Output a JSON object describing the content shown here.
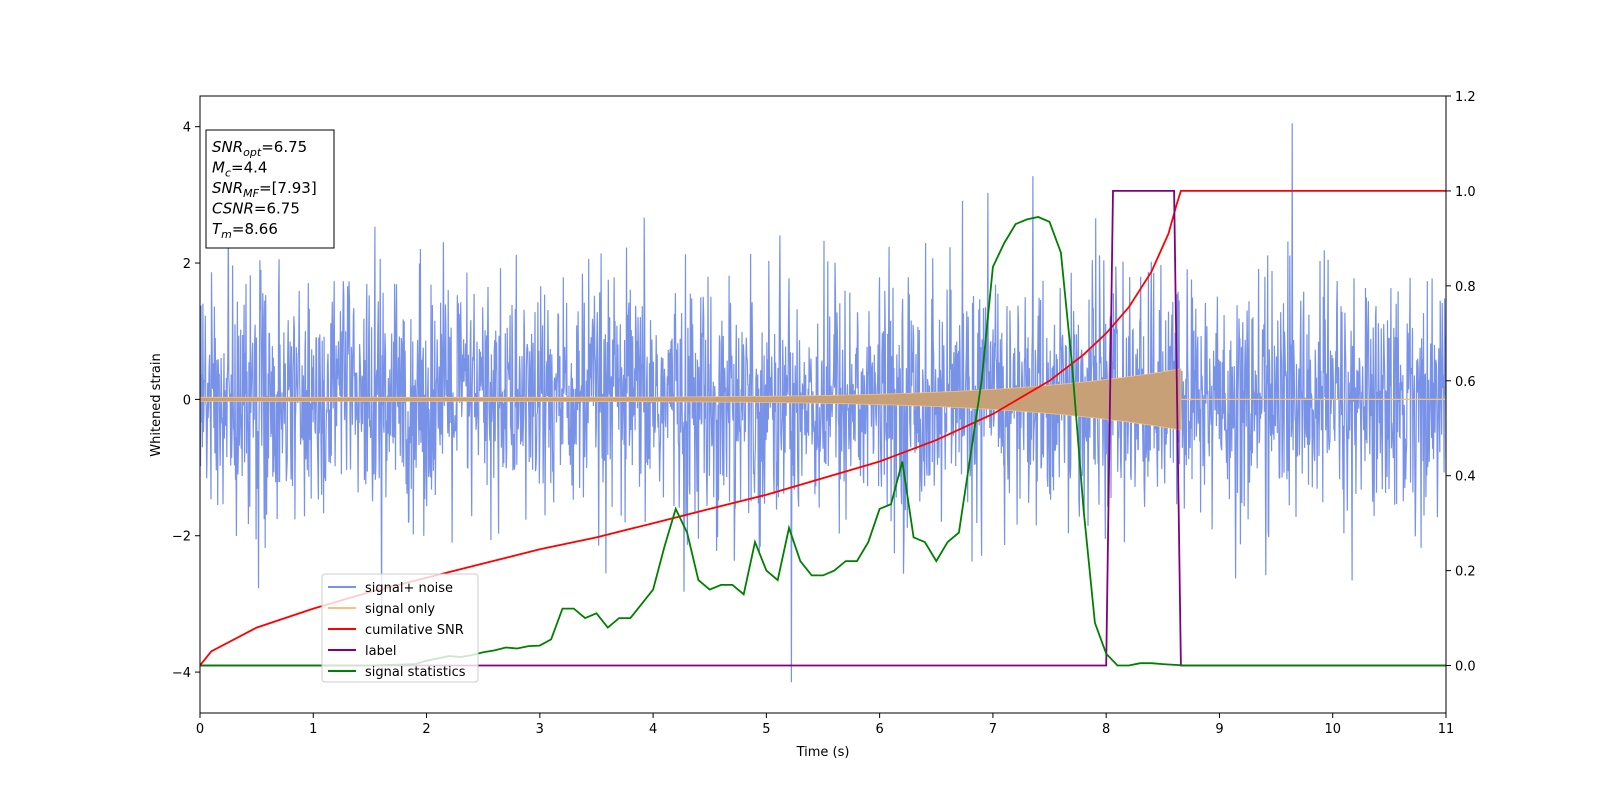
{
  "chart_data": {
    "type": "line",
    "title": "",
    "xlabel": "Time (s)",
    "ylabel": "Whitened strain",
    "ylabel_right": "",
    "xlim": [
      0,
      11
    ],
    "ylim": [
      -4.6,
      4.45
    ],
    "ylim_right": [
      -0.1,
      1.2
    ],
    "x_ticks": [
      "0",
      "1",
      "2",
      "3",
      "4",
      "5",
      "6",
      "7",
      "8",
      "9",
      "10",
      "11"
    ],
    "y_ticks": [
      "−4",
      "−2",
      "0",
      "2",
      "4"
    ],
    "y_ticks_right": [
      "0.0",
      "0.2",
      "0.4",
      "0.6",
      "0.8",
      "1.0",
      "1.2"
    ],
    "grid": false,
    "legend_position": "lower-left",
    "annotation_box": {
      "lines": [
        {
          "main": "SNR",
          "sub": "opt",
          "value": "=6.75"
        },
        {
          "main": "M",
          "sub": "c",
          "value": "=4.4"
        },
        {
          "main": "SNR",
          "sub": "MF",
          "value": "=[7.93]"
        },
        {
          "main": "CSNR",
          "sub": "",
          "value": "=6.75"
        },
        {
          "main": "T",
          "sub": "m",
          "value": "=8.66"
        }
      ]
    },
    "series": [
      {
        "name": "signal+ noise",
        "color": "#7892e8",
        "axis": "left",
        "description_values": "white noise, amplitude about ±2.5 with spikes to ±4, sampled over 0–11 s",
        "envelope": {
          "noise_sigma": 0.85,
          "max_spike": 4.05,
          "min_spike": -4.15
        }
      },
      {
        "name": "signal only",
        "color": "#f4c27a",
        "axis": "left",
        "chirp": {
          "t_start": 0,
          "t_merge": 8.66,
          "amp_start": 0.03,
          "amp_end": 0.45
        }
      },
      {
        "name": "cumilative SNR",
        "color": "#ff0000",
        "axis": "right",
        "x": [
          0,
          0.1,
          0.5,
          1,
          1.5,
          2,
          2.5,
          3,
          3.5,
          4,
          4.5,
          5,
          5.5,
          6,
          6.5,
          7,
          7.5,
          7.8,
          8,
          8.2,
          8.4,
          8.55,
          8.62,
          8.66,
          9,
          10,
          11
        ],
        "values": [
          0.0,
          0.03,
          0.08,
          0.12,
          0.155,
          0.185,
          0.215,
          0.245,
          0.27,
          0.3,
          0.33,
          0.36,
          0.395,
          0.43,
          0.475,
          0.53,
          0.6,
          0.655,
          0.7,
          0.755,
          0.83,
          0.91,
          0.97,
          1.0,
          1.0,
          1.0,
          1.0
        ]
      },
      {
        "name": "label",
        "color": "#800080",
        "axis": "right",
        "x": [
          0,
          8.0,
          8.06,
          8.6,
          8.66,
          11
        ],
        "values": [
          0,
          0,
          1,
          1,
          0,
          0
        ]
      },
      {
        "name": "signal statistics",
        "color": "#008000",
        "axis": "right",
        "x": [
          0,
          0.5,
          1,
          1.5,
          1.9,
          2.0,
          2.1,
          2.2,
          2.3,
          2.4,
          2.5,
          2.6,
          2.7,
          2.8,
          2.9,
          3.0,
          3.1,
          3.2,
          3.3,
          3.4,
          3.5,
          3.6,
          3.7,
          3.8,
          3.9,
          4.0,
          4.1,
          4.2,
          4.3,
          4.4,
          4.5,
          4.6,
          4.7,
          4.8,
          4.9,
          5.0,
          5.1,
          5.2,
          5.3,
          5.4,
          5.5,
          5.6,
          5.7,
          5.8,
          5.9,
          6.0,
          6.1,
          6.2,
          6.3,
          6.4,
          6.5,
          6.6,
          6.7,
          6.8,
          6.9,
          7.0,
          7.1,
          7.2,
          7.3,
          7.4,
          7.5,
          7.6,
          7.7,
          7.8,
          7.9,
          8.0,
          8.1,
          8.2,
          8.3,
          8.4,
          8.5,
          8.7,
          9.0,
          10,
          11
        ],
        "values": [
          0.0,
          0.0,
          0.0,
          0.0,
          0.003,
          0.01,
          0.015,
          0.02,
          0.018,
          0.022,
          0.028,
          0.032,
          0.038,
          0.036,
          0.041,
          0.042,
          0.055,
          0.12,
          0.12,
          0.1,
          0.11,
          0.08,
          0.1,
          0.1,
          0.13,
          0.16,
          0.25,
          0.33,
          0.28,
          0.18,
          0.16,
          0.17,
          0.17,
          0.15,
          0.26,
          0.2,
          0.18,
          0.29,
          0.22,
          0.19,
          0.19,
          0.2,
          0.22,
          0.22,
          0.26,
          0.33,
          0.34,
          0.43,
          0.27,
          0.26,
          0.22,
          0.26,
          0.28,
          0.44,
          0.6,
          0.84,
          0.89,
          0.93,
          0.94,
          0.945,
          0.935,
          0.87,
          0.63,
          0.33,
          0.09,
          0.025,
          0.0,
          0.0,
          0.005,
          0.005,
          0.003,
          0.0,
          0.0,
          0.0,
          0.0
        ]
      }
    ]
  }
}
